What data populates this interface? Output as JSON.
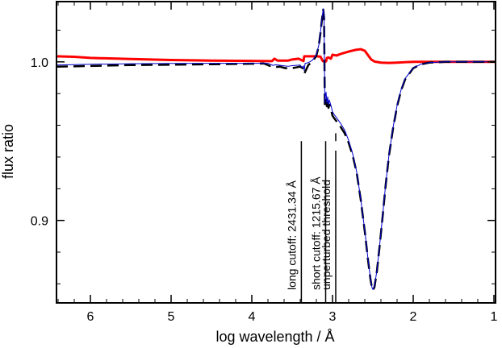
{
  "chart_data": {
    "type": "line",
    "xlabel": "log wavelength / Å",
    "ylabel": "flux ratio",
    "xlim": [
      6.42,
      0.98
    ],
    "ylim": [
      0.848,
      1.038
    ],
    "x_reversed": true,
    "xticks": [
      6,
      5,
      4,
      3,
      2,
      1
    ],
    "xtick_labels": [
      "6",
      "5",
      "4",
      "3",
      "2",
      "1"
    ],
    "yticks": [
      0.9,
      1.0
    ],
    "ytick_labels": [
      "0.9",
      "1.0"
    ],
    "y_minor_step": 0.02,
    "x_minor_step": 0.2,
    "grid": false,
    "series": [
      {
        "color": "#ff0000",
        "style": "solid-thick",
        "points": [
          [
            6.42,
            1.0035
          ],
          [
            6.2,
            1.0032
          ],
          [
            6.0,
            1.0025
          ],
          [
            5.5,
            1.0018
          ],
          [
            5.0,
            1.0012
          ],
          [
            4.5,
            1.0008
          ],
          [
            4.0,
            1.0006
          ],
          [
            3.75,
            1.0005
          ],
          [
            3.72,
            1.002
          ],
          [
            3.68,
            1.0008
          ],
          [
            3.55,
            1.0008
          ],
          [
            3.5,
            1.0015
          ],
          [
            3.42,
            1.002
          ],
          [
            3.38,
            1.001
          ],
          [
            3.36,
            1.0005
          ],
          [
            3.35,
            1.0035
          ],
          [
            3.3,
            1.0035
          ],
          [
            3.2,
            1.0035
          ],
          [
            3.15,
            1.0033
          ],
          [
            3.12,
            1.0005
          ],
          [
            3.1,
            1.0002
          ],
          [
            3.08,
            1.0003
          ],
          [
            3.07,
            1.0025
          ],
          [
            3.05,
            1.0028
          ],
          [
            3.02,
            1.002
          ],
          [
            3.0,
            1.0045
          ],
          [
            2.95,
            1.004
          ],
          [
            2.9,
            1.005
          ],
          [
            2.8,
            1.0065
          ],
          [
            2.72,
            1.0075
          ],
          [
            2.65,
            1.008
          ],
          [
            2.6,
            1.007
          ],
          [
            2.55,
            1.0035
          ],
          [
            2.52,
            1.0015
          ],
          [
            2.48,
            1.0002
          ],
          [
            2.4,
            0.9995
          ],
          [
            2.3,
            0.9993
          ],
          [
            2.2,
            0.9995
          ],
          [
            2.1,
            0.9998
          ],
          [
            2.0,
            1.0
          ],
          [
            1.5,
            1.0
          ],
          [
            0.98,
            1.0
          ]
        ]
      },
      {
        "color": "#000000",
        "style": "dashed-thick",
        "points": [
          [
            6.42,
            0.997
          ],
          [
            6.0,
            0.9974
          ],
          [
            5.5,
            0.998
          ],
          [
            5.0,
            0.9982
          ],
          [
            4.5,
            0.9985
          ],
          [
            4.0,
            0.9988
          ],
          [
            3.85,
            0.999
          ],
          [
            3.78,
            0.9975
          ],
          [
            3.74,
            0.9975
          ],
          [
            3.7,
            0.9968
          ],
          [
            3.65,
            0.997
          ],
          [
            3.6,
            0.9962
          ],
          [
            3.55,
            0.9958
          ],
          [
            3.5,
            0.996
          ],
          [
            3.45,
            0.9965
          ],
          [
            3.4,
            0.997
          ],
          [
            3.37,
            0.996
          ],
          [
            3.35,
            0.9925
          ],
          [
            3.3,
            0.998
          ],
          [
            3.25,
            1.0
          ],
          [
            3.2,
            1.004
          ],
          [
            3.17,
            1.01
          ],
          [
            3.15,
            1.018
          ],
          [
            3.13,
            1.027
          ],
          [
            3.115,
            1.033
          ],
          [
            3.105,
            1.028
          ],
          [
            3.1,
            1.0
          ],
          [
            3.095,
            0.972
          ],
          [
            3.09,
            0.974
          ],
          [
            3.08,
            0.976
          ],
          [
            3.07,
            0.972
          ],
          [
            3.06,
            0.976
          ],
          [
            3.05,
            0.971
          ],
          [
            3.04,
            0.973
          ],
          [
            3.02,
            0.97
          ],
          [
            3.0,
            0.966
          ],
          [
            2.98,
            0.9645
          ],
          [
            2.95,
            0.9625
          ],
          [
            2.9,
            0.959
          ],
          [
            2.85,
            0.955
          ],
          [
            2.8,
            0.949
          ],
          [
            2.75,
            0.941
          ],
          [
            2.7,
            0.93
          ],
          [
            2.65,
            0.913
          ],
          [
            2.6,
            0.893
          ],
          [
            2.56,
            0.875
          ],
          [
            2.53,
            0.863
          ],
          [
            2.51,
            0.857
          ],
          [
            2.5,
            0.856
          ],
          [
            2.48,
            0.858
          ],
          [
            2.45,
            0.868
          ],
          [
            2.42,
            0.882
          ],
          [
            2.38,
            0.902
          ],
          [
            2.34,
            0.923
          ],
          [
            2.3,
            0.941
          ],
          [
            2.25,
            0.958
          ],
          [
            2.2,
            0.972
          ],
          [
            2.15,
            0.982
          ],
          [
            2.1,
            0.989
          ],
          [
            2.0,
            0.996
          ],
          [
            1.9,
            0.9985
          ],
          [
            1.8,
            0.9995
          ],
          [
            1.6,
            1.0
          ],
          [
            1.4,
            1.0
          ],
          [
            0.98,
            1.0
          ]
        ]
      },
      {
        "color": "#0000cc",
        "style": "solid-thin",
        "points": [
          [
            6.42,
            0.998
          ],
          [
            6.0,
            0.9985
          ],
          [
            5.5,
            0.9988
          ],
          [
            5.0,
            0.999
          ],
          [
            4.5,
            0.9991
          ],
          [
            4.0,
            0.9991
          ],
          [
            3.8,
            0.9991
          ],
          [
            3.74,
            0.9978
          ],
          [
            3.7,
            0.9982
          ],
          [
            3.6,
            0.9975
          ],
          [
            3.55,
            0.9972
          ],
          [
            3.5,
            0.9976
          ],
          [
            3.45,
            0.9978
          ],
          [
            3.4,
            0.998
          ],
          [
            3.38,
            0.9965
          ],
          [
            3.36,
            0.9975
          ],
          [
            3.35,
            0.9945
          ],
          [
            3.34,
            0.999
          ],
          [
            3.3,
            0.9995
          ],
          [
            3.25,
            1.001
          ],
          [
            3.2,
            1.0045
          ],
          [
            3.17,
            1.0105
          ],
          [
            3.15,
            1.0185
          ],
          [
            3.13,
            1.0275
          ],
          [
            3.115,
            1.0335
          ],
          [
            3.105,
            1.029
          ],
          [
            3.1,
            1.0
          ],
          [
            3.095,
            0.974
          ],
          [
            3.09,
            0.978
          ],
          [
            3.08,
            0.981
          ],
          [
            3.07,
            0.974
          ],
          [
            3.06,
            0.978
          ],
          [
            3.05,
            0.973
          ],
          [
            3.04,
            0.976
          ],
          [
            3.02,
            0.9725
          ],
          [
            3.0,
            0.9685
          ],
          [
            2.98,
            0.9668
          ],
          [
            2.95,
            0.9648
          ],
          [
            2.9,
            0.9612
          ],
          [
            2.85,
            0.957
          ],
          [
            2.8,
            0.9505
          ],
          [
            2.75,
            0.942
          ],
          [
            2.7,
            0.9305
          ],
          [
            2.65,
            0.9135
          ],
          [
            2.6,
            0.8935
          ],
          [
            2.56,
            0.8755
          ],
          [
            2.53,
            0.8635
          ],
          [
            2.51,
            0.8575
          ],
          [
            2.5,
            0.8565
          ],
          [
            2.48,
            0.8585
          ],
          [
            2.45,
            0.8685
          ],
          [
            2.42,
            0.8825
          ],
          [
            2.38,
            0.9025
          ],
          [
            2.34,
            0.9235
          ],
          [
            2.3,
            0.9415
          ],
          [
            2.25,
            0.9585
          ],
          [
            2.2,
            0.9725
          ],
          [
            2.15,
            0.9825
          ],
          [
            2.1,
            0.9895
          ],
          [
            2.0,
            0.9962
          ],
          [
            1.9,
            0.9986
          ],
          [
            1.8,
            0.9995
          ],
          [
            1.6,
            1.0
          ],
          [
            1.4,
            1.0
          ],
          [
            0.98,
            1.0
          ]
        ]
      }
    ],
    "vertical_markers": [
      {
        "x": 3.386,
        "label": "long cutoff: 2431.34 Å",
        "ymax": 0.95
      },
      {
        "x": 3.085,
        "label": "short cutoff: 1215.67 Å",
        "ymax": 0.95
      },
      {
        "x": 2.96,
        "label": "unperturbed threshold",
        "ymax": 0.95,
        "gap_from": 0.944,
        "gap_to": 0.955
      }
    ]
  }
}
